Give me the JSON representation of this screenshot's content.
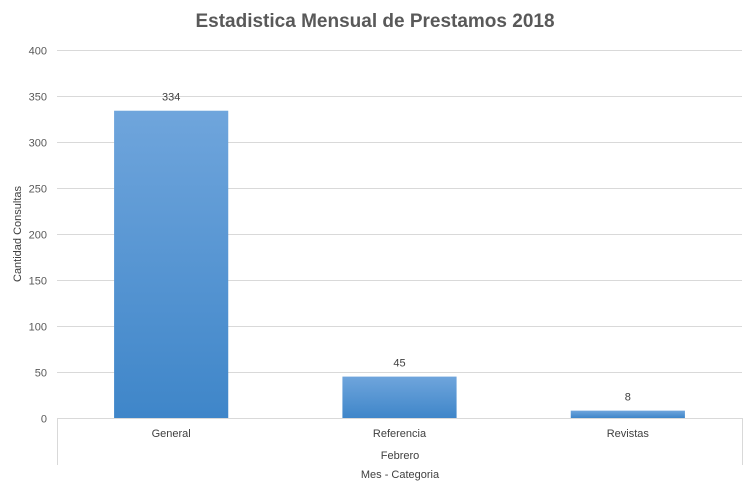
{
  "chart_data": {
    "type": "bar",
    "title": "Estadistica Mensual de Prestamos 2018",
    "xlabel": "Mes - Categoria",
    "ylabel": "Cantidad Consultas",
    "group_label": "Febrero",
    "categories": [
      "General",
      "Referencia",
      "Revistas"
    ],
    "values": [
      334,
      45,
      8
    ],
    "ylim": [
      0,
      400
    ],
    "yticks": [
      0,
      50,
      100,
      150,
      200,
      250,
      300,
      350,
      400
    ],
    "grid": true,
    "legend": "none",
    "colors": {
      "bar_top": "#6fa5dc",
      "bar_bottom": "#3f86c9",
      "grid": "#d9d9d9"
    }
  }
}
